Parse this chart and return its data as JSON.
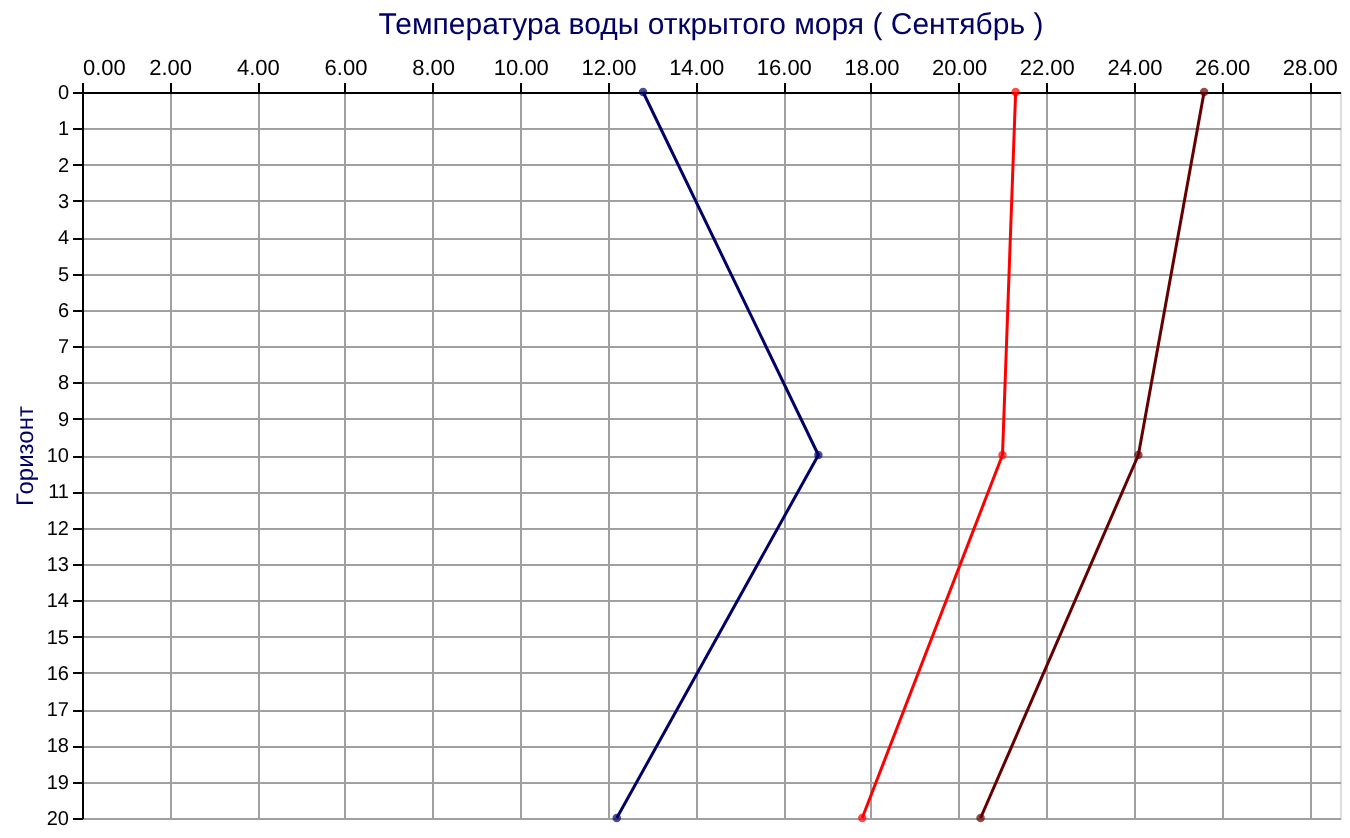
{
  "chart_data": {
    "type": "line",
    "title": "Температура воды открытого моря     ( Сентябрь )",
    "ylabel": "Горизонт",
    "series": [
      {
        "color": "#000066",
        "x": [
          12.8,
          16.8,
          12.2
        ],
        "values": [
          0,
          10,
          20
        ]
      },
      {
        "color": "#ff0000",
        "x": [
          21.3,
          21.0,
          17.8
        ],
        "values": [
          0,
          10,
          20
        ]
      },
      {
        "color": "#660000",
        "x": [
          25.6,
          24.1,
          20.5
        ],
        "values": [
          0,
          10,
          20
        ]
      }
    ],
    "xlim": [
      0,
      28.7
    ],
    "xticks": [
      {
        "value": 0,
        "label": "0.00"
      },
      {
        "value": 2,
        "label": "2.00"
      },
      {
        "value": 4,
        "label": "4.00"
      },
      {
        "value": 6,
        "label": "6.00"
      },
      {
        "value": 8,
        "label": "8.00"
      },
      {
        "value": 10,
        "label": "10.00"
      },
      {
        "value": 12,
        "label": "12.00"
      },
      {
        "value": 14,
        "label": "14.00"
      },
      {
        "value": 16,
        "label": "16.00"
      },
      {
        "value": 18,
        "label": "18.00"
      },
      {
        "value": 20,
        "label": "20.00"
      },
      {
        "value": 22,
        "label": "22.00"
      },
      {
        "value": 24,
        "label": "24.00"
      },
      {
        "value": 26,
        "label": "26.00"
      },
      {
        "value": 28,
        "label": "28.00"
      }
    ],
    "ylim": [
      20,
      0
    ],
    "yticks": [
      0,
      1,
      2,
      3,
      4,
      5,
      6,
      7,
      8,
      9,
      10,
      11,
      12,
      13,
      14,
      15,
      16,
      17,
      18,
      19,
      20
    ],
    "grid": true,
    "marker": "circle",
    "line_style": "solid",
    "legend": false
  }
}
